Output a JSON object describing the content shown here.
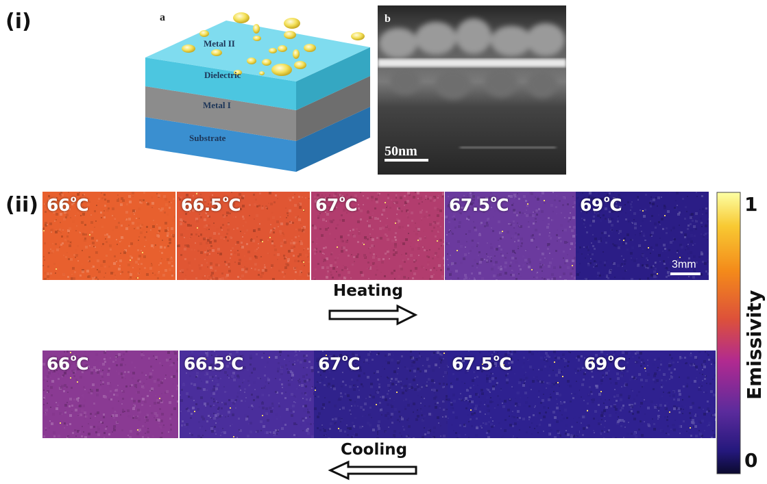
{
  "panel_i": {
    "label": "(i)",
    "subpanel_a": {
      "label": "a",
      "layers": [
        "Metal II",
        "Dielectric",
        "Metal I",
        "Substrate"
      ]
    },
    "subpanel_b": {
      "label": "b",
      "scale_bar": "50nm"
    }
  },
  "panel_ii": {
    "label": "(ii)",
    "heating": {
      "label": "Heating",
      "tiles": [
        {
          "temp": "66",
          "unit": "C",
          "emissivity": 0.68,
          "color": "#e8602e"
        },
        {
          "temp": "66.5",
          "unit": "C",
          "emissivity": 0.64,
          "color": "#e05633"
        },
        {
          "temp": "67",
          "unit": "C",
          "emissivity": 0.45,
          "color": "#b23d6e"
        },
        {
          "temp": "67.5",
          "unit": "C",
          "emissivity": 0.28,
          "color": "#6b3a9e"
        },
        {
          "temp": "69",
          "unit": "C",
          "emissivity": 0.12,
          "color": "#2b1d86"
        }
      ],
      "scale_bar": "3mm"
    },
    "cooling": {
      "label": "Cooling",
      "tiles": [
        {
          "temp": "66",
          "unit": "C",
          "emissivity": 0.35,
          "color": "#8a3a93"
        },
        {
          "temp": "66.5",
          "unit": "C",
          "emissivity": 0.2,
          "color": "#4a2e9c"
        },
        {
          "temp": "67",
          "unit": "C",
          "emissivity": 0.14,
          "color": "#30228c"
        },
        {
          "temp": "67.5",
          "unit": "C",
          "emissivity": 0.13,
          "color": "#2e2190"
        },
        {
          "temp": "69",
          "unit": "C",
          "emissivity": 0.13,
          "color": "#2f2190"
        }
      ]
    },
    "colorbar": {
      "title": "Emissivity",
      "max_label": "1",
      "min_label": "0"
    }
  }
}
